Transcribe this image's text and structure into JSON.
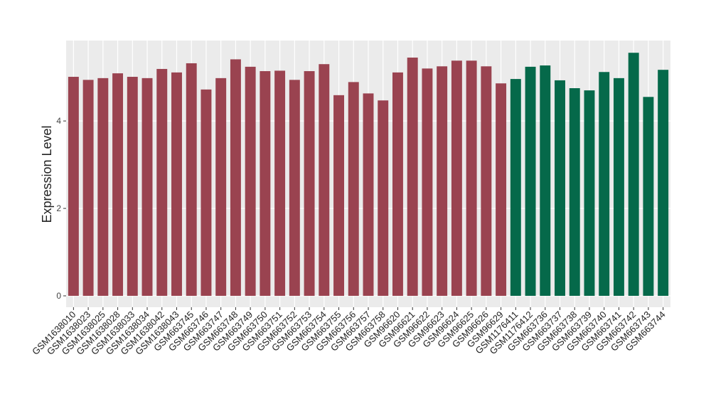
{
  "chart_data": {
    "type": "bar",
    "y_label": "Expression Level",
    "categories": [
      "GSM1638010",
      "GSM1638023",
      "GSM1638025",
      "GSM1638028",
      "GSM1638033",
      "GSM1638034",
      "GSM1638042",
      "GSM1638043",
      "GSM663745",
      "GSM663746",
      "GSM663747",
      "GSM663748",
      "GSM663749",
      "GSM663750",
      "GSM663751",
      "GSM663752",
      "GSM663753",
      "GSM663754",
      "GSM663755",
      "GSM663756",
      "GSM663757",
      "GSM663758",
      "GSM96620",
      "GSM96621",
      "GSM96622",
      "GSM96623",
      "GSM96624",
      "GSM96625",
      "GSM96626",
      "GSM96629",
      "GSM1176411",
      "GSM1176412",
      "GSM663736",
      "GSM663737",
      "GSM663738",
      "GSM663739",
      "GSM663740",
      "GSM663741",
      "GSM663742",
      "GSM663743",
      "GSM663744"
    ],
    "series": [
      {
        "color": "#9a4350",
        "values": [
          5.01,
          4.94,
          4.98,
          5.09,
          5.01,
          4.98,
          5.19,
          5.11,
          5.32,
          4.72,
          4.98,
          5.41,
          5.24,
          5.14,
          5.15,
          4.94,
          5.14,
          5.3,
          4.59,
          4.89,
          4.63,
          4.47,
          5.11,
          5.45,
          5.2,
          5.25,
          5.38,
          5.38,
          5.25,
          4.86,
          null,
          null,
          null,
          null,
          null,
          null,
          null,
          null,
          null,
          null,
          null
        ]
      },
      {
        "color": "#05694a",
        "values": [
          null,
          null,
          null,
          null,
          null,
          null,
          null,
          null,
          null,
          null,
          null,
          null,
          null,
          null,
          null,
          null,
          null,
          null,
          null,
          null,
          null,
          null,
          null,
          null,
          null,
          null,
          null,
          null,
          null,
          null,
          4.96,
          5.24,
          5.27,
          4.93,
          4.75,
          4.7,
          5.12,
          4.98,
          5.56,
          4.55,
          5.17
        ]
      }
    ],
    "ylim": [
      -0.26,
      5.84
    ],
    "yticks": [
      0,
      2,
      4
    ],
    "grid": true
  }
}
